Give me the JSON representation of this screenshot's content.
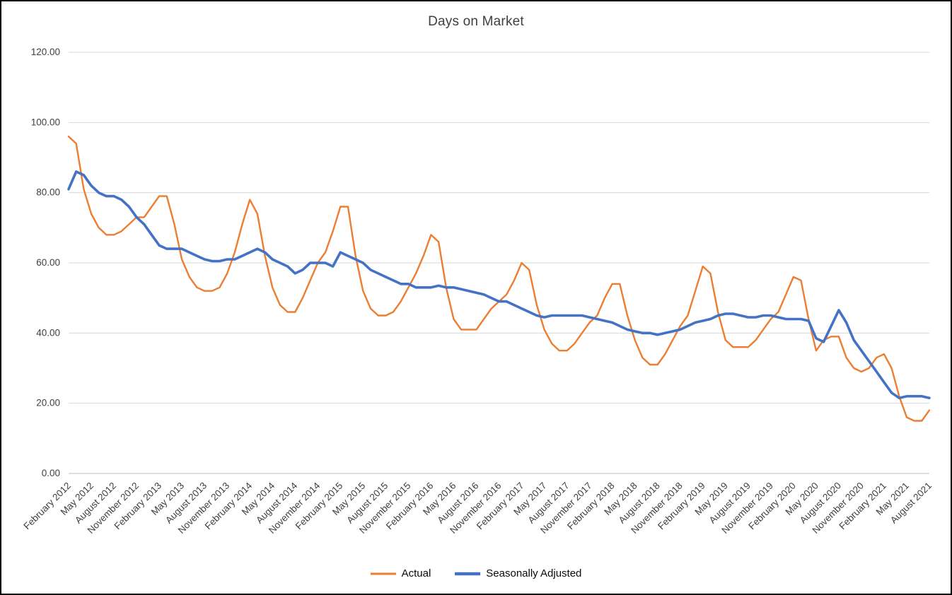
{
  "chart_data": {
    "type": "line",
    "title": "Days on Market",
    "xlabel": "",
    "ylabel": "",
    "ylim": [
      0,
      120
    ],
    "ytick_step": 20,
    "ytick_decimals": 2,
    "grid": true,
    "legend_position": "bottom",
    "x_label_step": 3,
    "x_labels": [
      "February 2012",
      "May 2012",
      "August 2012",
      "November 2012",
      "February 2013",
      "May 2013",
      "August 2013",
      "November 2013",
      "February 2014",
      "May 2014",
      "August 2014",
      "November 2014",
      "February 2015",
      "May 2015",
      "August 2015",
      "November 2015",
      "February 2016",
      "May 2016",
      "August 2016",
      "November 2016",
      "February 2017",
      "May 2017",
      "August 2017",
      "November 2017",
      "February 2018",
      "May 2018",
      "August 2018",
      "November 2018",
      "February 2019",
      "May 2019",
      "August 2019",
      "November 2019",
      "February 2020",
      "May 2020",
      "August 2020",
      "November 2020",
      "February 2021",
      "May 2021",
      "August 2021"
    ],
    "series": [
      {
        "name": "Actual",
        "color": "#ED7D31",
        "stroke_width": 2.4,
        "values": [
          96,
          94,
          81,
          74,
          70,
          68,
          68,
          69,
          71,
          73,
          73,
          76,
          79,
          79,
          71,
          61,
          56,
          53,
          52,
          52,
          53,
          57,
          63,
          71,
          78,
          74,
          62,
          53,
          48,
          46,
          46,
          50,
          55,
          60,
          63,
          69,
          76,
          76,
          62,
          52,
          47,
          45,
          45,
          46,
          49,
          53,
          57,
          62,
          68,
          66,
          53,
          44,
          41,
          41,
          41,
          44,
          47,
          49,
          51,
          55,
          60,
          58,
          48,
          41,
          37,
          35,
          35,
          37,
          40,
          43,
          45,
          50,
          54,
          54,
          45,
          38,
          33,
          31,
          31,
          34,
          38,
          42,
          45,
          52,
          59,
          57,
          46,
          38,
          36,
          36,
          36,
          38,
          41,
          44,
          46,
          51,
          56,
          55,
          44,
          35,
          38,
          39,
          39,
          33,
          30,
          29,
          30,
          33,
          34,
          30,
          22,
          16,
          15,
          15,
          18
        ]
      },
      {
        "name": "Seasonally Adjusted",
        "color": "#4472C4",
        "stroke_width": 3.6,
        "values": [
          81,
          86,
          85,
          82,
          80,
          79,
          79,
          78,
          76,
          73,
          71,
          68,
          65,
          64,
          64,
          64,
          63,
          62,
          61,
          60.5,
          60.5,
          61,
          61,
          62,
          63,
          64,
          63,
          61,
          60,
          59,
          57,
          58,
          60,
          60,
          60,
          59,
          63,
          62,
          61,
          60,
          58,
          57,
          56,
          55,
          54,
          54,
          53,
          53,
          53,
          53.5,
          53,
          53,
          52.5,
          52,
          51.5,
          51,
          50,
          49,
          49,
          48,
          47,
          46,
          45,
          44.5,
          45,
          45,
          45,
          45,
          45,
          44.5,
          44,
          43.5,
          43,
          42,
          41,
          40.5,
          40,
          40,
          39.5,
          40,
          40.5,
          41,
          42,
          43,
          43.5,
          44,
          45,
          45.5,
          45.5,
          45,
          44.5,
          44.5,
          45,
          45,
          44.5,
          44,
          44,
          44,
          43.5,
          38.5,
          37.5,
          42,
          46.5,
          43,
          38,
          35,
          32,
          29,
          26,
          23,
          21.5,
          22,
          22,
          22,
          21.5
        ]
      }
    ]
  }
}
